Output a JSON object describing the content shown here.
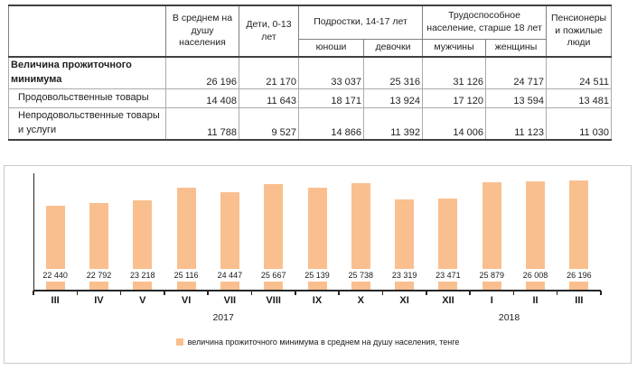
{
  "table": {
    "col_headers": {
      "avg": "В среднем на душу населения",
      "children": "Дети, 0-13 лет",
      "teens": "Подростки, 14-17 лет",
      "teens_sub": [
        "юноши",
        "девочки"
      ],
      "working": "Трудоспособное население, старше 18 лет",
      "working_sub": [
        "мужчины",
        "женщины"
      ],
      "pensioners": "Пенсионеры и пожилые люди"
    },
    "rows": [
      {
        "label": "Величина прожиточного минимума",
        "values": [
          "26 196",
          "21 170",
          "33 037",
          "25 316",
          "31 126",
          "24 717",
          "24 511"
        ]
      },
      {
        "label": "Продовольственные товары",
        "values": [
          "14 408",
          "11 643",
          "18 171",
          "13 924",
          "17 120",
          "13 594",
          "13 481"
        ]
      },
      {
        "label": "Непродовольственные товары и услуги",
        "values": [
          "11 788",
          "9 527",
          "14 866",
          "11 392",
          "14 006",
          "11 123",
          "11 030"
        ]
      }
    ]
  },
  "chart_data": {
    "type": "bar",
    "title": "",
    "categories": [
      "III",
      "IV",
      "V",
      "VI",
      "VII",
      "VIII",
      "IX",
      "X",
      "XI",
      "XII",
      "I",
      "II",
      "III"
    ],
    "values": [
      22440,
      22792,
      23218,
      25116,
      24447,
      25667,
      25139,
      25738,
      23319,
      23471,
      25879,
      26008,
      26196
    ],
    "year_groups": [
      {
        "label": "2017",
        "from": 0,
        "to": 9
      },
      {
        "label": "2018",
        "from": 10,
        "to": 12
      }
    ],
    "legend": "величина прожиточного минимума  в среднем на душу населения, тенге",
    "legend_position": "bottom",
    "bar_color": "#FABF8F",
    "data_labels_visible": true,
    "y_axis_labels_visible": false,
    "grid": false
  }
}
